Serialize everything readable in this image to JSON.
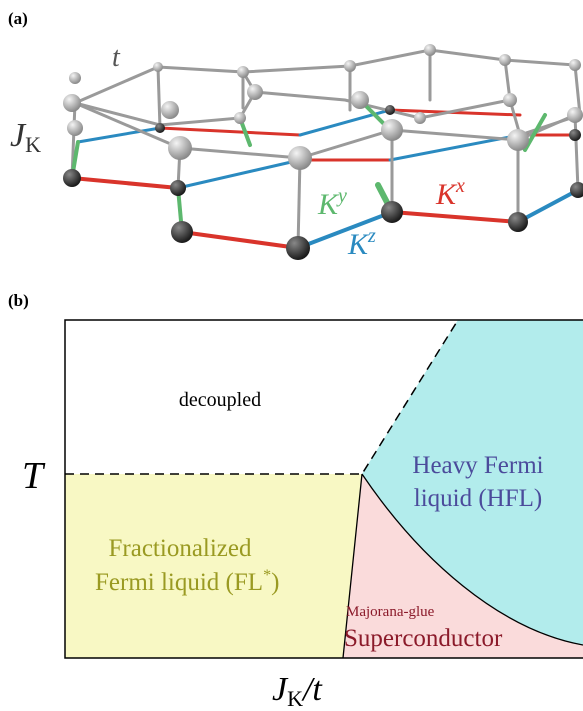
{
  "panel_a": {
    "label": "(a)",
    "hopping": "t",
    "kondo": {
      "base": "J",
      "sub": "K"
    },
    "bonds": [
      {
        "base": "K",
        "sup": "y"
      },
      {
        "base": "K",
        "sup": "x"
      },
      {
        "base": "K",
        "sup": "z"
      }
    ]
  },
  "panel_b": {
    "label": "(b)",
    "y_axis": "T",
    "x_axis": {
      "base": "J",
      "sub": "K",
      "rest": "/t"
    },
    "regions": {
      "decoupled": "decoupled",
      "hfl": [
        "Heavy Fermi",
        "liquid (HFL)"
      ],
      "fl_star": {
        "line1": "Fractionalized",
        "line2": "Fermi liquid (FL",
        "sup": "*",
        "close": ")"
      },
      "sc": {
        "small": "Majorana-glue",
        "main": "Superconductor"
      }
    }
  }
}
